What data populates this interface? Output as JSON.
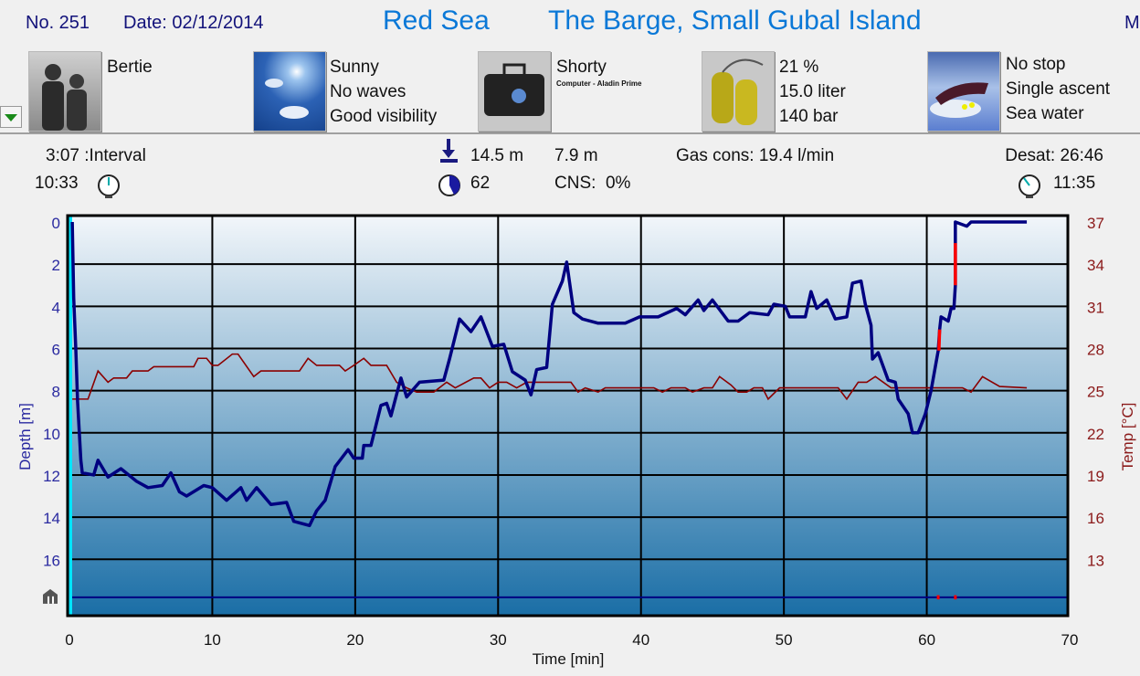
{
  "header": {
    "dive_number": "No. 251",
    "date": "Date: 02/12/2014",
    "region": "Red Sea",
    "site": "The Barge, Small Gubal Island",
    "cut_off_text": "M"
  },
  "details": {
    "buddy": {
      "icon": "divers-photo",
      "lines": [
        "Bertie"
      ]
    },
    "conditions": {
      "icon": "sky-photo",
      "lines": [
        "Sunny",
        "No waves",
        "Good visibility"
      ]
    },
    "equipment": {
      "icon": "dive-bag-photo",
      "lines": [
        "Shorty"
      ],
      "sub": "Computer - Aladin Prime"
    },
    "gas": {
      "icon": "tanks-photo",
      "lines": [
        "21 %",
        "15.0 liter",
        "140 bar"
      ]
    },
    "dive_type": {
      "icon": "diver-photo",
      "lines": [
        "No stop",
        "Single ascent",
        "Sea water"
      ]
    }
  },
  "stats": {
    "interval": "3:07 :Interval",
    "entry_time": "10:33",
    "max_depth": "14.5 m",
    "avg_depth": "7.9 m",
    "gas_consumption": "Gas cons: 19.4 l/min",
    "desat": "Desat: 26:46",
    "duration": "62",
    "cns": "CNS:  0%",
    "exit_time": "11:35"
  },
  "chart_data": {
    "type": "line",
    "xlabel": "Time [min]",
    "ylabel_left": "Depth [m]",
    "ylabel_right": "Temp [°C]",
    "xlim": [
      0,
      70
    ],
    "ylim_depth": [
      0,
      18.7
    ],
    "depth_inverted": true,
    "ylim_temp": [
      37,
      9
    ],
    "x_ticks": [
      "0",
      "10",
      "20",
      "30",
      "40",
      "50",
      "60",
      "70"
    ],
    "depth_ticks": [
      "0",
      "2",
      "4",
      "6",
      "8",
      "10",
      "12",
      "14",
      "16"
    ],
    "temp_ticks": [
      "37",
      "34",
      "31",
      "28",
      "25",
      "22",
      "19",
      "16",
      "13"
    ],
    "grid": true,
    "colors": {
      "depth": "#000080",
      "temp": "#8b0000",
      "warning": "#ff0000",
      "bg_top": "#f2f6fa",
      "bg_bottom": "#1a6ea6",
      "start_marker": "#00e5ff",
      "depth_labels": "#2a2aa0",
      "temp_labels": "#8b1a1a"
    },
    "reference_line_depth": 17.8,
    "series": [
      {
        "key": "depth",
        "points": [
          [
            0.2,
            0
          ],
          [
            0.3,
            3.6
          ],
          [
            0.45,
            6.1
          ],
          [
            0.57,
            8.5
          ],
          [
            0.8,
            11.3
          ],
          [
            0.9,
            11.9
          ],
          [
            1.7,
            12.0
          ],
          [
            2.0,
            11.3
          ],
          [
            2.7,
            12.1
          ],
          [
            3.6,
            11.7
          ],
          [
            4.7,
            12.3
          ],
          [
            5.5,
            12.6
          ],
          [
            6.5,
            12.5
          ],
          [
            7.1,
            11.9
          ],
          [
            7.7,
            12.8
          ],
          [
            8.2,
            13.0
          ],
          [
            9.4,
            12.5
          ],
          [
            10,
            12.6
          ],
          [
            11,
            13.2
          ],
          [
            12,
            12.6
          ],
          [
            12.4,
            13.2
          ],
          [
            13.1,
            12.6
          ],
          [
            14.1,
            13.4
          ],
          [
            15.2,
            13.3
          ],
          [
            15.7,
            14.2
          ],
          [
            16.8,
            14.4
          ],
          [
            17.3,
            13.7
          ],
          [
            17.9,
            13.2
          ],
          [
            18.6,
            11.6
          ],
          [
            19.5,
            10.8
          ],
          [
            19.9,
            11.2
          ],
          [
            20.5,
            11.2
          ],
          [
            20.6,
            10.6
          ],
          [
            21.1,
            10.6
          ],
          [
            21.8,
            8.7
          ],
          [
            22.2,
            8.6
          ],
          [
            22.5,
            9.2
          ],
          [
            23.2,
            7.4
          ],
          [
            23.6,
            8.3
          ],
          [
            24.5,
            7.6
          ],
          [
            26.2,
            7.5
          ],
          [
            26.6,
            6.5
          ],
          [
            27.3,
            4.6
          ],
          [
            28.1,
            5.2
          ],
          [
            28.8,
            4.5
          ],
          [
            29.6,
            5.9
          ],
          [
            30.4,
            5.8
          ],
          [
            31.0,
            7.1
          ],
          [
            31.9,
            7.5
          ],
          [
            32.3,
            8.2
          ],
          [
            32.7,
            7.0
          ],
          [
            33.4,
            6.9
          ],
          [
            33.8,
            3.9
          ],
          [
            34.5,
            2.8
          ],
          [
            34.8,
            1.9
          ],
          [
            35.3,
            4.3
          ],
          [
            35.9,
            4.6
          ],
          [
            37.0,
            4.8
          ],
          [
            38.9,
            4.8
          ],
          [
            39.9,
            4.5
          ],
          [
            41.2,
            4.5
          ],
          [
            42.5,
            4.1
          ],
          [
            43.1,
            4.4
          ],
          [
            44.0,
            3.7
          ],
          [
            44.4,
            4.2
          ],
          [
            45.0,
            3.7
          ],
          [
            46.1,
            4.7
          ],
          [
            46.8,
            4.7
          ],
          [
            47.6,
            4.3
          ],
          [
            48.9,
            4.4
          ],
          [
            49.3,
            3.9
          ],
          [
            50.1,
            4.0
          ],
          [
            50.4,
            4.5
          ],
          [
            51.5,
            4.5
          ],
          [
            51.9,
            3.3
          ],
          [
            52.3,
            4.1
          ],
          [
            53.0,
            3.7
          ],
          [
            53.6,
            4.6
          ],
          [
            54.4,
            4.5
          ],
          [
            54.8,
            2.9
          ],
          [
            55.4,
            2.8
          ],
          [
            55.7,
            3.9
          ],
          [
            56.1,
            4.9
          ],
          [
            56.2,
            6.5
          ],
          [
            56.6,
            6.2
          ],
          [
            57.3,
            7.5
          ],
          [
            57.8,
            7.6
          ],
          [
            58.0,
            8.4
          ],
          [
            58.7,
            9.1
          ],
          [
            59.0,
            10.0
          ],
          [
            59.4,
            10.0
          ],
          [
            59.9,
            9.1
          ],
          [
            60.3,
            8.0
          ],
          [
            60.8,
            6.1
          ],
          [
            60.9,
            5.1
          ],
          [
            61.0,
            4.5
          ],
          [
            61.5,
            4.7
          ],
          [
            61.7,
            4.1
          ],
          [
            61.9,
            4.1
          ],
          [
            62.0,
            3.0
          ],
          [
            62.0,
            1.0
          ],
          [
            62.0,
            0
          ],
          [
            62.8,
            0.2
          ],
          [
            63.1,
            0
          ],
          [
            67.0,
            0
          ]
        ]
      },
      {
        "key": "temp",
        "points": [
          [
            0.2,
            24.4
          ],
          [
            1.3,
            24.4
          ],
          [
            2.0,
            26.4
          ],
          [
            2.7,
            25.6
          ],
          [
            3.1,
            25.9
          ],
          [
            4.0,
            25.9
          ],
          [
            4.4,
            26.4
          ],
          [
            5.5,
            26.4
          ],
          [
            5.9,
            26.7
          ],
          [
            8.7,
            26.7
          ],
          [
            9.0,
            27.3
          ],
          [
            9.6,
            27.3
          ],
          [
            10,
            26.8
          ],
          [
            10.4,
            26.8
          ],
          [
            11.4,
            27.6
          ],
          [
            11.8,
            27.6
          ],
          [
            12.9,
            26.0
          ],
          [
            13.4,
            26.4
          ],
          [
            16.1,
            26.4
          ],
          [
            16.7,
            27.3
          ],
          [
            17.3,
            26.8
          ],
          [
            18.9,
            26.8
          ],
          [
            19.3,
            26.4
          ],
          [
            19.9,
            26.8
          ],
          [
            20.6,
            27.3
          ],
          [
            21.1,
            26.8
          ],
          [
            22.2,
            26.8
          ],
          [
            22.9,
            25.6
          ],
          [
            23.6,
            25.2
          ],
          [
            24.3,
            24.9
          ],
          [
            25.5,
            24.9
          ],
          [
            26.4,
            25.6
          ],
          [
            27.0,
            25.2
          ],
          [
            28.3,
            25.9
          ],
          [
            28.8,
            25.9
          ],
          [
            29.4,
            25.2
          ],
          [
            30.0,
            25.6
          ],
          [
            30.6,
            25.6
          ],
          [
            31.3,
            25.2
          ],
          [
            32.0,
            25.6
          ],
          [
            35.1,
            25.6
          ],
          [
            35.6,
            24.9
          ],
          [
            36.1,
            25.2
          ],
          [
            37.0,
            24.9
          ],
          [
            37.5,
            25.2
          ],
          [
            40.9,
            25.2
          ],
          [
            41.5,
            24.9
          ],
          [
            42.1,
            25.2
          ],
          [
            43.1,
            25.2
          ],
          [
            43.6,
            24.9
          ],
          [
            44.4,
            25.2
          ],
          [
            45.0,
            25.2
          ],
          [
            45.5,
            26.0
          ],
          [
            46.3,
            25.4
          ],
          [
            46.8,
            24.9
          ],
          [
            47.4,
            24.9
          ],
          [
            47.9,
            25.2
          ],
          [
            48.5,
            25.2
          ],
          [
            48.9,
            24.4
          ],
          [
            49.7,
            25.2
          ],
          [
            53.8,
            25.2
          ],
          [
            54.4,
            24.4
          ],
          [
            55.2,
            25.6
          ],
          [
            55.8,
            25.6
          ],
          [
            56.4,
            26.0
          ],
          [
            57.5,
            25.2
          ],
          [
            62.5,
            25.2
          ],
          [
            63.1,
            24.9
          ],
          [
            63.9,
            26.0
          ],
          [
            65.1,
            25.3
          ],
          [
            67.0,
            25.2
          ]
        ]
      }
    ],
    "ascent_warnings": [
      [
        60.8,
        60.9
      ],
      [
        62.0,
        62.0
      ]
    ]
  }
}
